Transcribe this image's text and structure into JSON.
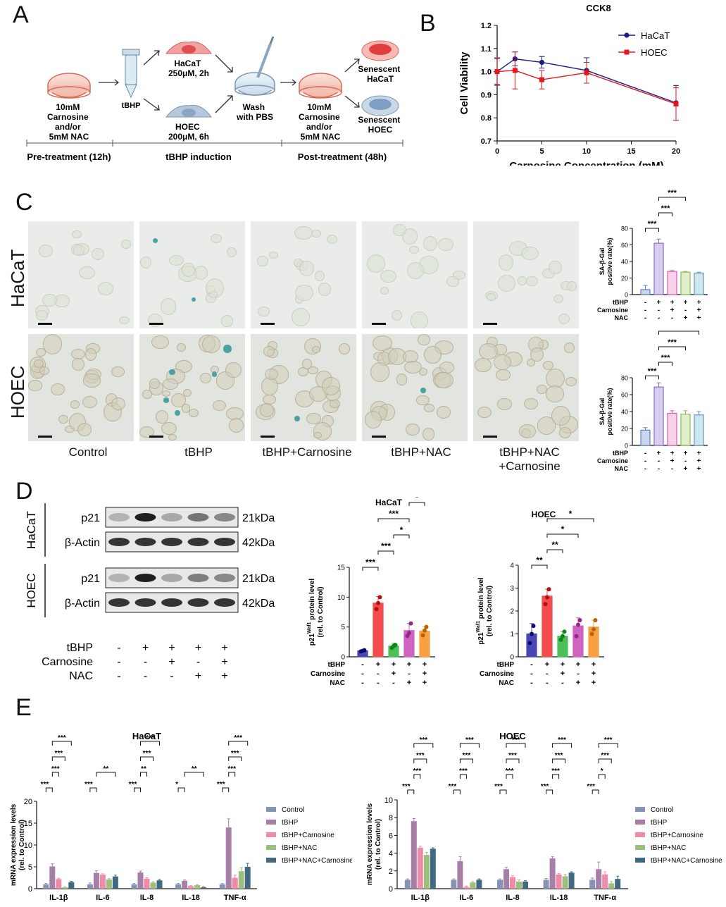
{
  "panels": {
    "a": "A",
    "b": "B",
    "c": "C",
    "d": "D",
    "e": "E"
  },
  "schematic": {
    "dish1": [
      "10mM",
      "Carnosine",
      "and/or",
      "5mM NAC"
    ],
    "tube_label": "tBHP",
    "hacat": [
      "HaCaT",
      "250μM, 2h"
    ],
    "hoec": [
      "HOEC",
      "200μM, 6h"
    ],
    "wash": [
      "Wash",
      "with PBS"
    ],
    "dish2": [
      "10mM",
      "Carnosine",
      "and/or",
      "5mM NAC"
    ],
    "senescent_hacat": [
      "Senescent",
      "HaCaT"
    ],
    "senescent_hoec": [
      "Senescent",
      "HOEC"
    ],
    "timeline": [
      "Pre-treatment (12h)",
      "tBHP induction",
      "Post-treatment (48h)"
    ]
  },
  "panel_c": {
    "rows": [
      "HaCaT",
      "HOEC"
    ],
    "columns": [
      "Control",
      "tBHP",
      "tBHP+Carnosine",
      "tBHP+NAC",
      "tBHP+NAC\n+Carnosine"
    ],
    "columns_display": [
      "Control",
      "tBHP",
      "tBHP+Carnosine",
      "tBHP+NAC",
      "tBHP+NAC",
      "+Carnosine"
    ]
  },
  "panel_d": {
    "blot_rows": [
      "HaCaT",
      "HOEC"
    ],
    "bands": [
      "p21",
      "β-Actin",
      "p21",
      "β-Actin"
    ],
    "sizes": [
      "21kDa",
      "42kDa",
      "21kDa",
      "42kDa"
    ],
    "treatments": [
      {
        "name": "tBHP",
        "signs": [
          "-",
          "+",
          "+",
          "+",
          "+"
        ]
      },
      {
        "name": "Carnosine",
        "signs": [
          "-",
          "-",
          "+",
          "-",
          "+"
        ]
      },
      {
        "name": "NAC",
        "signs": [
          "-",
          "-",
          "-",
          "+",
          "+"
        ]
      }
    ]
  },
  "chart_data": [
    {
      "id": "B",
      "type": "line",
      "title": "CCK8",
      "xlabel": "Carnosine Concentration (mM)",
      "ylabel": "Cell Viability",
      "xlim": [
        0,
        20
      ],
      "ylim": [
        0.7,
        1.2
      ],
      "xticks": [
        0,
        5,
        10,
        15,
        20
      ],
      "yticks": [
        0.7,
        0.8,
        0.9,
        1.0,
        1.1,
        1.2
      ],
      "legend": "top-right",
      "series": [
        {
          "name": "HaCaT",
          "color": "#1a1a8c",
          "x": [
            0,
            2,
            5,
            10,
            20
          ],
          "y": [
            1.0,
            1.055,
            1.04,
            1.005,
            0.865
          ],
          "err": [
            0.055,
            0.03,
            0.025,
            0.055,
            0.075
          ]
        },
        {
          "name": "HOEC",
          "color": "#e8161b",
          "x": [
            0,
            2,
            5,
            10,
            20
          ],
          "y": [
            1.0,
            1.005,
            0.965,
            0.995,
            0.86
          ],
          "err": [
            0.06,
            0.08,
            0.04,
            0.045,
            0.07
          ]
        }
      ]
    },
    {
      "id": "C-HaCaT",
      "type": "bar",
      "ylabel": "SA-β-Gal\npositive rate(%)",
      "ylim": [
        0,
        80
      ],
      "yticks": [
        0,
        20,
        40,
        60,
        80
      ],
      "values": [
        6,
        62,
        28,
        27,
        26
      ],
      "errors": [
        5,
        5,
        1,
        1,
        1
      ],
      "colors": [
        "#c9d8ef",
        "#d9cdef",
        "#f7d2ea",
        "#e1f0cc",
        "#cfe6ee"
      ],
      "edges": [
        "#5d82c2",
        "#8d6bc4",
        "#d85fa9",
        "#8bbb55",
        "#5c9bb5"
      ],
      "significance": [
        [
          "***",
          0,
          1
        ],
        [
          "***",
          1,
          2
        ],
        [
          "***",
          1,
          3
        ],
        [
          "***",
          1,
          4
        ]
      ],
      "treatments": [
        {
          "name": "tBHP",
          "signs": [
            "-",
            "+",
            "+",
            "+",
            "+"
          ]
        },
        {
          "name": "Carnosine",
          "signs": [
            "-",
            "-",
            "+",
            "-",
            "+"
          ]
        },
        {
          "name": "NAC",
          "signs": [
            "-",
            "-",
            "-",
            "+",
            "+"
          ]
        }
      ]
    },
    {
      "id": "C-HOEC",
      "type": "bar",
      "ylabel": "SA-β-Gal\npositive rate(%)",
      "ylim": [
        0,
        80
      ],
      "yticks": [
        0,
        20,
        40,
        60,
        80
      ],
      "values": [
        18,
        69,
        38,
        37,
        36
      ],
      "errors": [
        3,
        5,
        3,
        4,
        4
      ],
      "colors": [
        "#c9d8ef",
        "#d9cdef",
        "#f7d2ea",
        "#e1f0cc",
        "#cfe6ee"
      ],
      "edges": [
        "#5d82c2",
        "#8d6bc4",
        "#d85fa9",
        "#8bbb55",
        "#5c9bb5"
      ],
      "significance": [
        [
          "***",
          0,
          1
        ],
        [
          "***",
          1,
          2
        ],
        [
          "***",
          1,
          3
        ],
        [
          "***",
          1,
          4
        ]
      ],
      "treatments": [
        {
          "name": "tBHP",
          "signs": [
            "-",
            "+",
            "+",
            "+",
            "+"
          ]
        },
        {
          "name": "Carnosine",
          "signs": [
            "-",
            "-",
            "+",
            "-",
            "+"
          ]
        },
        {
          "name": "NAC",
          "signs": [
            "-",
            "-",
            "-",
            "+",
            "+"
          ]
        }
      ]
    },
    {
      "id": "D-HaCaT",
      "type": "bar",
      "title": "HaCaT",
      "ylabel": "p21 protein level\n(rel. to Control)",
      "ylabel_superscript": "Waf1",
      "ylim": [
        0,
        15
      ],
      "yticks": [
        0,
        5,
        10,
        15
      ],
      "values": [
        1.0,
        9.0,
        1.8,
        4.4,
        4.3
      ],
      "errors": [
        0.2,
        1.1,
        0.5,
        1.2,
        0.8
      ],
      "points": [
        [
          0.9,
          1.0,
          1.1
        ],
        [
          8.0,
          9.0,
          10.0
        ],
        [
          1.5,
          1.8,
          2.0
        ],
        [
          3.5,
          4.0,
          5.6
        ],
        [
          3.6,
          4.4,
          5.0
        ]
      ],
      "colors": [
        "#4848b4",
        "#f24d4d",
        "#4cc057",
        "#d062c2",
        "#f6a041"
      ],
      "significance": [
        [
          "***",
          0,
          1
        ],
        [
          "***",
          1,
          2
        ],
        [
          "*",
          2,
          3
        ],
        [
          "***",
          1,
          3
        ],
        [
          "*",
          3,
          4
        ],
        [
          "***",
          1,
          4
        ]
      ],
      "treatments": [
        {
          "name": "tBHP",
          "signs": [
            "-",
            "+",
            "+",
            "+",
            "+"
          ]
        },
        {
          "name": "Carnosine",
          "signs": [
            "-",
            "-",
            "+",
            "-",
            "+"
          ]
        },
        {
          "name": "NAC",
          "signs": [
            "-",
            "-",
            "-",
            "+",
            "+"
          ]
        }
      ]
    },
    {
      "id": "D-HOEC",
      "type": "bar",
      "title": "HOEC",
      "ylabel": "p21 protein level\n(rel. to Control)",
      "ylabel_superscript": "Waf1",
      "ylim": [
        0,
        4
      ],
      "yticks": [
        0,
        1,
        2,
        3,
        4
      ],
      "values": [
        1.0,
        2.65,
        0.9,
        1.35,
        1.3
      ],
      "errors": [
        0.45,
        0.3,
        0.2,
        0.35,
        0.3
      ],
      "points": [
        [
          0.6,
          1.0,
          1.35
        ],
        [
          2.3,
          2.6,
          2.95
        ],
        [
          0.75,
          0.9,
          1.1
        ],
        [
          0.9,
          1.4,
          1.6
        ],
        [
          1.0,
          1.2,
          1.6
        ]
      ],
      "colors": [
        "#4848b4",
        "#f24d4d",
        "#4cc057",
        "#d062c2",
        "#f6a041"
      ],
      "significance": [
        [
          "**",
          0,
          1
        ],
        [
          "**",
          1,
          2
        ],
        [
          "*",
          1,
          3
        ],
        [
          "*",
          1,
          4
        ]
      ],
      "treatments": [
        {
          "name": "tBHP",
          "signs": [
            "-",
            "+",
            "+",
            "+",
            "+"
          ]
        },
        {
          "name": "Carnosine",
          "signs": [
            "-",
            "-",
            "+",
            "-",
            "+"
          ]
        },
        {
          "name": "NAC",
          "signs": [
            "-",
            "-",
            "-",
            "+",
            "+"
          ]
        }
      ]
    },
    {
      "id": "E-HaCaT",
      "type": "bar",
      "title": "HaCaT",
      "ylabel": "mRNA expression levels\n(rel. to Control)",
      "ylim": [
        0,
        20
      ],
      "yticks": [
        0,
        5,
        10,
        15,
        20
      ],
      "categories": [
        "IL-1β",
        "IL-6",
        "IL-8",
        "IL-18",
        "TNF-α"
      ],
      "legend": "right",
      "series": [
        {
          "name": "Control",
          "color": "#8793b5",
          "values": [
            1.0,
            1.0,
            1.0,
            1.0,
            1.0
          ],
          "errors": [
            0.2,
            0.3,
            0.2,
            0.2,
            0.2
          ]
        },
        {
          "name": "tBHP",
          "color": "#a67fa9",
          "values": [
            5.1,
            3.6,
            3.7,
            1.8,
            14.0
          ],
          "errors": [
            0.6,
            0.5,
            0.3,
            0.2,
            2.0
          ]
        },
        {
          "name": "tBHP+Carnosine",
          "color": "#ef8aa8",
          "values": [
            2.2,
            3.2,
            2.3,
            0.6,
            2.5
          ],
          "errors": [
            0.2,
            0.2,
            0.2,
            0.1,
            0.6
          ]
        },
        {
          "name": "tBHP+NAC",
          "color": "#9dbf7d",
          "values": [
            0.3,
            2.1,
            1.4,
            0.8,
            4.0
          ],
          "errors": [
            0.1,
            0.2,
            0.2,
            0.1,
            0.8
          ]
        },
        {
          "name": "tBHP+NAC+Carnosine",
          "color": "#416a82",
          "values": [
            1.5,
            2.8,
            1.9,
            0.3,
            5.0
          ],
          "errors": [
            0.2,
            0.3,
            0.2,
            0.1,
            0.8
          ]
        }
      ],
      "significance": [
        [
          [
            "***",
            0,
            1
          ],
          [
            "***",
            1,
            2
          ],
          [
            "***",
            1,
            3
          ],
          [
            "***",
            1,
            4
          ]
        ],
        [
          [
            "***",
            0,
            1
          ],
          [
            "**",
            1,
            4
          ]
        ],
        [
          [
            "***",
            0,
            1
          ],
          [
            "**",
            1,
            2
          ],
          [
            "***",
            1,
            3
          ],
          [
            "***",
            1,
            4
          ]
        ],
        [
          [
            "*",
            0,
            1
          ],
          [
            "**",
            1,
            4
          ]
        ],
        [
          [
            "***",
            0,
            1
          ],
          [
            "***",
            1,
            2
          ],
          [
            "***",
            1,
            3
          ],
          [
            "***",
            1,
            4
          ]
        ]
      ]
    },
    {
      "id": "E-HOEC",
      "type": "bar",
      "title": "HOEC",
      "ylabel": "mRNA expression levels\n(rel. to Control)",
      "ylim": [
        0,
        10
      ],
      "yticks": [
        0,
        2,
        4,
        6,
        8,
        10
      ],
      "categories": [
        "IL-1β",
        "IL-6",
        "IL-8",
        "IL-18",
        "TNF-α"
      ],
      "legend": "right",
      "series": [
        {
          "name": "Control",
          "color": "#8793b5",
          "values": [
            1.0,
            1.0,
            1.0,
            1.0,
            1.0
          ],
          "errors": [
            0.1,
            0.1,
            0.1,
            0.15,
            0.2
          ]
        },
        {
          "name": "tBHP",
          "color": "#a67fa9",
          "values": [
            7.6,
            3.1,
            2.2,
            3.4,
            2.2
          ],
          "errors": [
            0.3,
            0.5,
            0.2,
            0.2,
            0.8
          ]
        },
        {
          "name": "tBHP+Carnosine",
          "color": "#ef8aa8",
          "values": [
            4.6,
            0.2,
            1.3,
            1.6,
            1.6
          ],
          "errors": [
            0.2,
            0.1,
            0.15,
            0.1,
            0.3
          ]
        },
        {
          "name": "tBHP+NAC",
          "color": "#9dbf7d",
          "values": [
            3.8,
            0.7,
            0.8,
            1.4,
            0.6
          ],
          "errors": [
            0.3,
            0.1,
            0.2,
            0.2,
            0.2
          ]
        },
        {
          "name": "tBHP+NAC+Carnosine",
          "color": "#416a82",
          "values": [
            4.5,
            1.0,
            0.8,
            1.8,
            1.1
          ],
          "errors": [
            0.1,
            0.1,
            0.1,
            0.1,
            0.3
          ]
        }
      ],
      "significance": [
        [
          [
            "***",
            0,
            1
          ],
          [
            "***",
            1,
            2
          ],
          [
            "***",
            1,
            3
          ],
          [
            "***",
            1,
            4
          ]
        ],
        [
          [
            "***",
            0,
            1
          ],
          [
            "***",
            1,
            2
          ],
          [
            "***",
            1,
            3
          ],
          [
            "***",
            1,
            4
          ]
        ],
        [
          [
            "***",
            0,
            1
          ],
          [
            "***",
            1,
            2
          ],
          [
            "***",
            1,
            3
          ],
          [
            "***",
            1,
            4
          ]
        ],
        [
          [
            "***",
            0,
            1
          ],
          [
            "***",
            1,
            2
          ],
          [
            "***",
            1,
            3
          ],
          [
            "***",
            1,
            4
          ]
        ],
        [
          [
            "***",
            0,
            1
          ],
          [
            "*",
            1,
            2
          ],
          [
            "***",
            1,
            3
          ],
          [
            "***",
            1,
            4
          ]
        ]
      ]
    }
  ]
}
